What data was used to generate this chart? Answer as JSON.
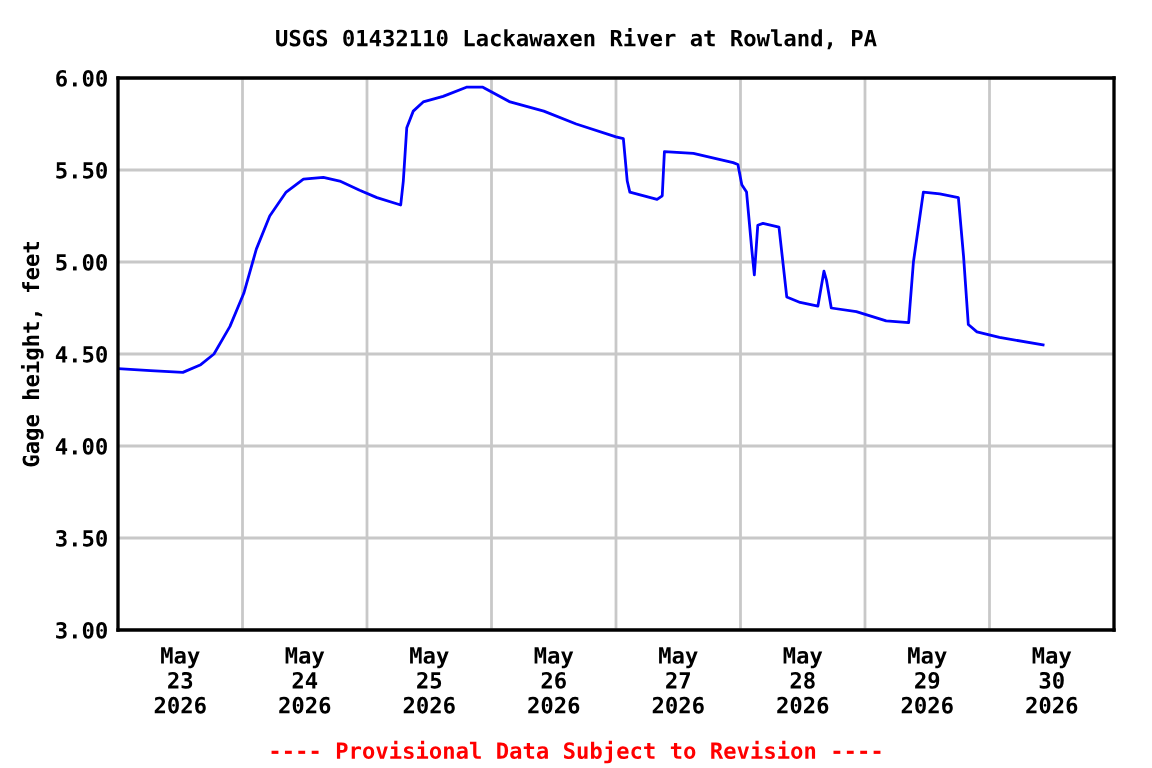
{
  "chart_data": {
    "type": "line",
    "title": "USGS 01432110 Lackawaxen River at Rowland, PA",
    "ylabel": "Gage height, feet",
    "annotations": [
      "---- Provisional Data Subject to Revision ----"
    ],
    "xlim": [
      "2026-05-23T00:00",
      "2026-05-31T00:00"
    ],
    "xticks": [
      {
        "value": "2026-05-23T12:00",
        "label": "May\n23\n2026"
      },
      {
        "value": "2026-05-24T12:00",
        "label": "May\n24\n2026"
      },
      {
        "value": "2026-05-25T12:00",
        "label": "May\n25\n2026"
      },
      {
        "value": "2026-05-26T12:00",
        "label": "May\n26\n2026"
      },
      {
        "value": "2026-05-27T12:00",
        "label": "May\n27\n2026"
      },
      {
        "value": "2026-05-28T12:00",
        "label": "May\n28\n2026"
      },
      {
        "value": "2026-05-29T12:00",
        "label": "May\n29\n2026"
      },
      {
        "value": "2026-05-30T12:00",
        "label": "May\n30\n2026"
      },
      {
        "value": "2026-05-24T00:00",
        "label": null
      },
      {
        "value": "2026-05-25T00:00",
        "label": null
      },
      {
        "value": "2026-05-26T00:00",
        "label": null
      },
      {
        "value": "2026-05-27T00:00",
        "label": null
      },
      {
        "value": "2026-05-28T00:00",
        "label": null
      },
      {
        "value": "2026-05-29T00:00",
        "label": null
      },
      {
        "value": "2026-05-30T00:00",
        "label": null
      }
    ],
    "ylim": [
      3.0,
      6.0
    ],
    "yticks": [
      {
        "value": 3.0,
        "label": "3.00"
      },
      {
        "value": 3.5,
        "label": "3.50"
      },
      {
        "value": 4.0,
        "label": "4.00"
      },
      {
        "value": 4.5,
        "label": "4.50"
      },
      {
        "value": 5.0,
        "label": "5.00"
      },
      {
        "value": 5.5,
        "label": "5.50"
      },
      {
        "value": 6.0,
        "label": "6.00"
      }
    ],
    "grid": true,
    "legend": false,
    "series": [
      {
        "color": "#0000ff",
        "x": [
          "2026-05-23T00:00",
          "2026-05-23T06:15",
          "2026-05-23T12:30",
          "2026-05-23T15:50",
          "2026-05-23T18:30",
          "2026-05-23T21:35",
          "2026-05-24T00:15",
          "2026-05-24T02:40",
          "2026-05-24T05:15",
          "2026-05-24T08:25",
          "2026-05-24T11:45",
          "2026-05-24T15:35",
          "2026-05-24T18:45",
          "2026-05-24T22:35",
          "2026-05-25T01:55",
          "2026-05-25T06:30",
          "2026-05-25T07:00",
          "2026-05-25T07:40",
          "2026-05-25T08:55",
          "2026-05-25T10:50",
          "2026-05-25T14:40",
          "2026-05-25T19:10",
          "2026-05-25T22:20",
          "2026-05-26T03:35",
          "2026-05-26T10:05",
          "2026-05-26T16:20",
          "2026-05-27T00:00",
          "2026-05-27T01:25",
          "2026-05-27T02:10",
          "2026-05-27T02:40",
          "2026-05-27T07:55",
          "2026-05-27T08:55",
          "2026-05-27T09:20",
          "2026-05-27T14:55",
          "2026-05-27T22:35",
          "2026-05-27T23:30",
          "2026-05-28T00:15",
          "2026-05-28T01:10",
          "2026-05-28T02:10",
          "2026-05-28T02:40",
          "2026-05-28T03:20",
          "2026-05-28T04:20",
          "2026-05-28T07:25",
          "2026-05-28T08:55",
          "2026-05-28T11:30",
          "2026-05-28T14:55",
          "2026-05-28T16:05",
          "2026-05-28T16:35",
          "2026-05-28T17:30",
          "2026-05-28T22:20",
          "2026-05-29T04:05",
          "2026-05-29T08:25",
          "2026-05-29T09:20",
          "2026-05-29T11:15",
          "2026-05-29T14:25",
          "2026-05-29T18:00",
          "2026-05-29T19:00",
          "2026-05-29T19:55",
          "2026-05-29T21:35",
          "2026-05-30T01:55",
          "2026-05-30T10:20"
        ],
        "values": [
          4.42,
          4.41,
          4.4,
          4.44,
          4.5,
          4.65,
          4.83,
          5.07,
          5.25,
          5.38,
          5.45,
          5.46,
          5.44,
          5.39,
          5.35,
          5.31,
          5.44,
          5.73,
          5.82,
          5.87,
          5.9,
          5.95,
          5.95,
          5.87,
          5.82,
          5.75,
          5.68,
          5.67,
          5.44,
          5.38,
          5.34,
          5.36,
          5.6,
          5.59,
          5.54,
          5.53,
          5.42,
          5.38,
          5.07,
          4.93,
          5.2,
          5.21,
          5.19,
          4.81,
          4.78,
          4.76,
          4.95,
          4.9,
          4.75,
          4.73,
          4.68,
          4.67,
          5.0,
          5.38,
          5.37,
          5.35,
          5.03,
          4.66,
          4.62,
          4.59,
          4.55
        ]
      }
    ]
  }
}
